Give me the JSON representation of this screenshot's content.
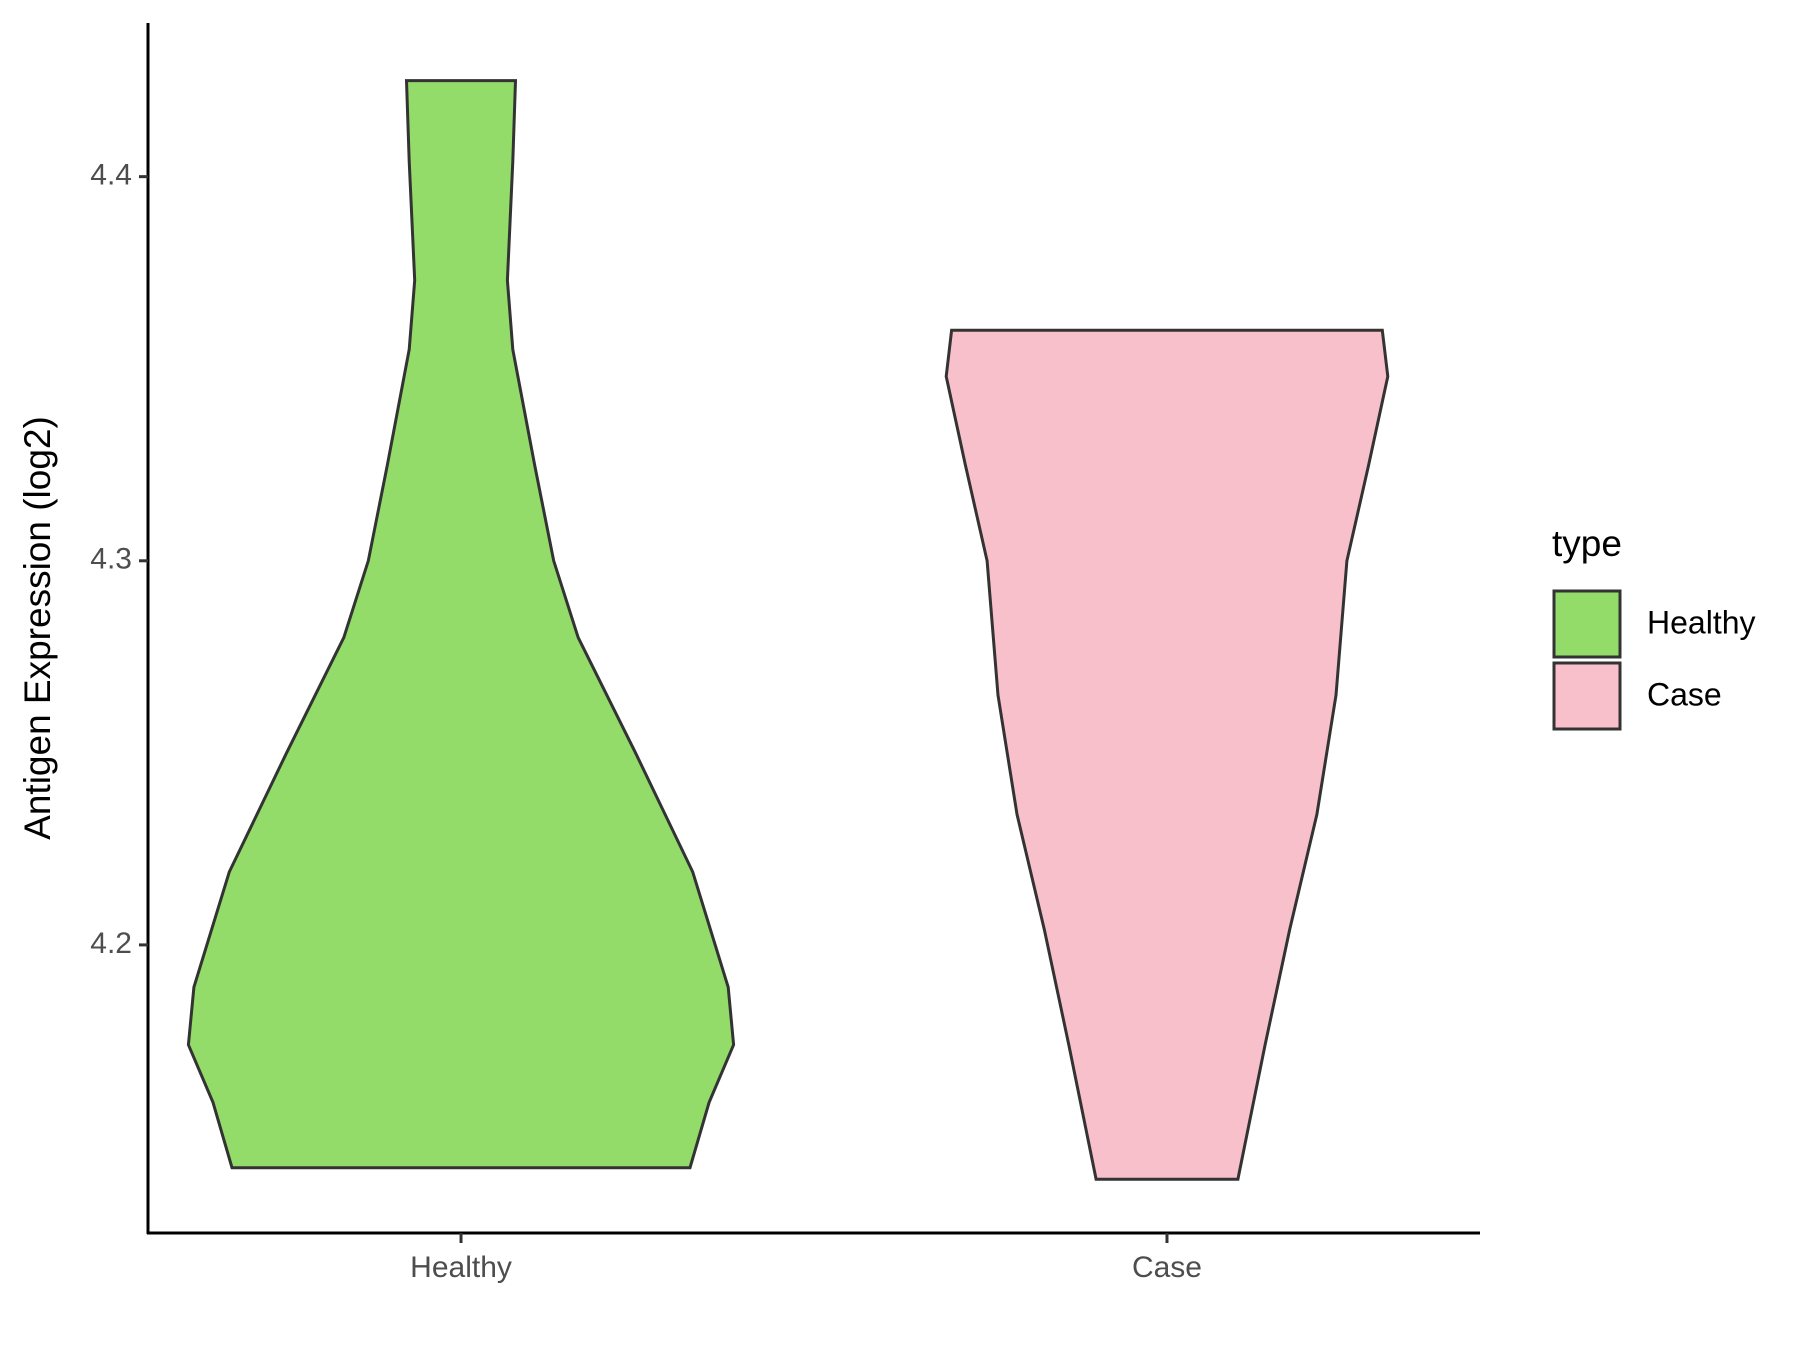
{
  "chart_data": {
    "type": "violin",
    "y_label": "Antigen Expression (log2)",
    "categories": [
      "Healthy",
      "Case"
    ],
    "ylim": [
      4.125,
      4.44
    ],
    "yticks": [
      4.2,
      4.3,
      4.4
    ],
    "legend_title": "type",
    "legend_position": "right",
    "series": [
      {
        "name": "Healthy",
        "color": "#93dc6a",
        "y": [
          4.425,
          4.404,
          4.373,
          4.355,
          4.325,
          4.3,
          4.28,
          4.25,
          4.219,
          4.189,
          4.174,
          4.159,
          4.142
        ],
        "density": [
          0.2,
          0.19,
          0.17,
          0.19,
          0.27,
          0.34,
          0.43,
          0.64,
          0.85,
          0.98,
          1.0,
          0.91,
          0.84
        ]
      },
      {
        "name": "Case",
        "color": "#f8c0cb",
        "y": [
          4.36,
          4.348,
          4.325,
          4.3,
          4.265,
          4.234,
          4.204,
          4.174,
          4.139
        ],
        "density": [
          0.79,
          0.81,
          0.74,
          0.66,
          0.62,
          0.55,
          0.45,
          0.36,
          0.26
        ]
      }
    ]
  }
}
